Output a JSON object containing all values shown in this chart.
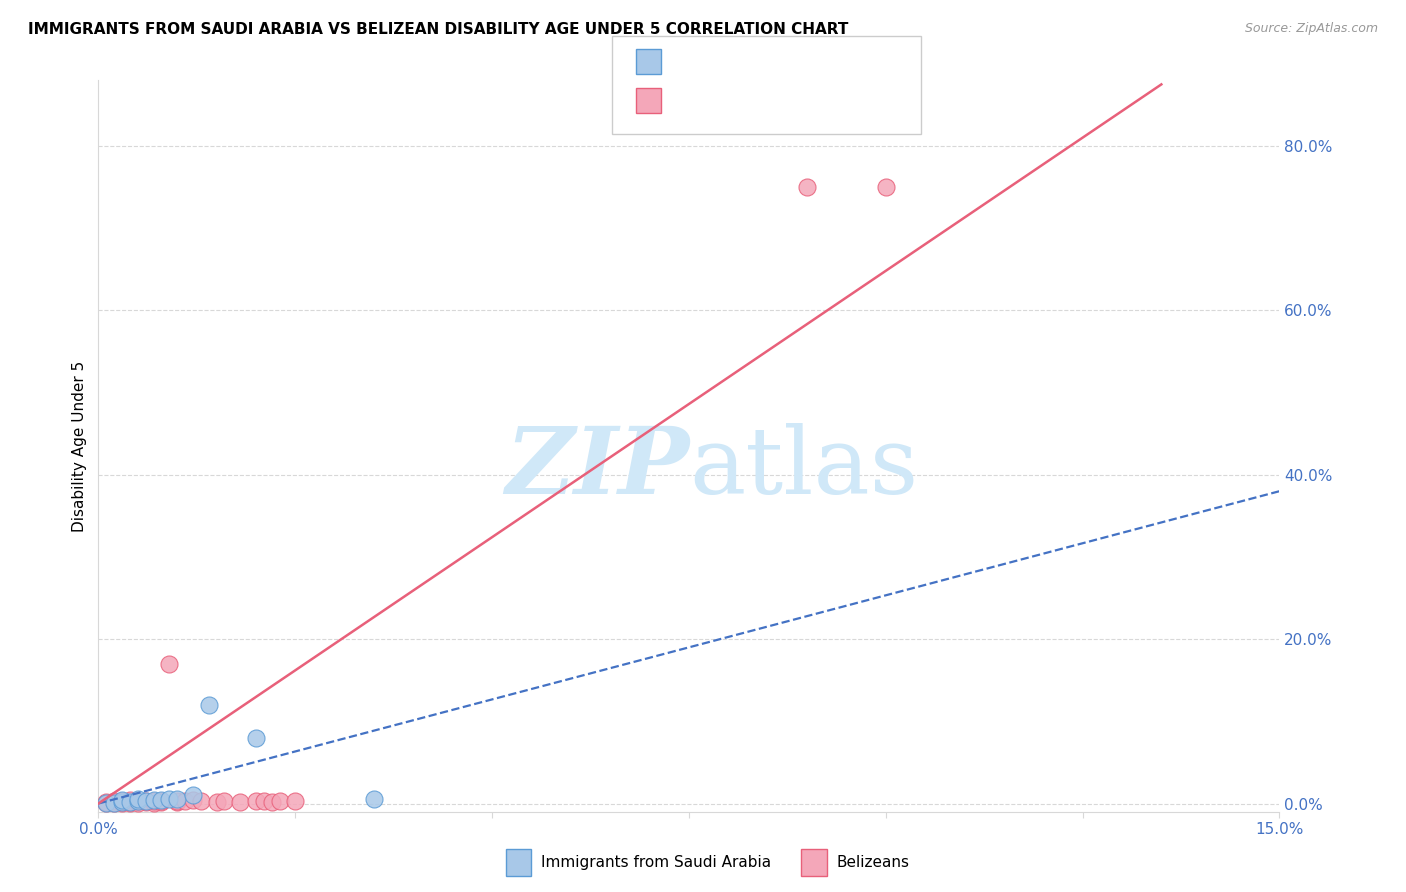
{
  "title": "IMMIGRANTS FROM SAUDI ARABIA VS BELIZEAN DISABILITY AGE UNDER 5 CORRELATION CHART",
  "source": "Source: ZipAtlas.com",
  "ylabel": "Disability Age Under 5",
  "legend_bottom_blue": "Immigrants from Saudi Arabia",
  "legend_bottom_pink": "Belizeans",
  "blue_scatter_color": "#a8c8e8",
  "blue_edge_color": "#5b9bd5",
  "pink_scatter_color": "#f4a7b9",
  "pink_edge_color": "#e8607a",
  "blue_line_color": "#4472c4",
  "pink_line_color": "#e8607a",
  "watermark_color": "#d0e8f8",
  "grid_color": "#d8d8d8",
  "blue_scatter_x": [
    0.001,
    0.002,
    0.003,
    0.003,
    0.004,
    0.005,
    0.005,
    0.006,
    0.007,
    0.008,
    0.009,
    0.01,
    0.012,
    0.014,
    0.02,
    0.035
  ],
  "blue_scatter_y": [
    0.001,
    0.001,
    0.002,
    0.004,
    0.002,
    0.003,
    0.005,
    0.003,
    0.004,
    0.004,
    0.005,
    0.006,
    0.01,
    0.12,
    0.08,
    0.005
  ],
  "pink_scatter_x": [
    0.001,
    0.001,
    0.002,
    0.002,
    0.003,
    0.003,
    0.003,
    0.004,
    0.004,
    0.004,
    0.005,
    0.005,
    0.006,
    0.006,
    0.007,
    0.007,
    0.008,
    0.008,
    0.009,
    0.01,
    0.01,
    0.011,
    0.012,
    0.013,
    0.015,
    0.016,
    0.018,
    0.02,
    0.021,
    0.022,
    0.023,
    0.025,
    0.09,
    0.1
  ],
  "pink_scatter_y": [
    0.001,
    0.002,
    0.001,
    0.003,
    0.001,
    0.002,
    0.003,
    0.001,
    0.002,
    0.004,
    0.001,
    0.003,
    0.002,
    0.003,
    0.001,
    0.003,
    0.002,
    0.003,
    0.17,
    0.002,
    0.003,
    0.003,
    0.004,
    0.003,
    0.002,
    0.003,
    0.002,
    0.003,
    0.003,
    0.002,
    0.003,
    0.003,
    0.75,
    0.75
  ],
  "blue_line_x": [
    0.0,
    0.15
  ],
  "blue_line_y": [
    0.0,
    0.38
  ],
  "pink_line_x": [
    0.0,
    0.135
  ],
  "pink_line_y": [
    0.0,
    0.875
  ],
  "xlim": [
    0.0,
    0.15
  ],
  "ylim": [
    -0.01,
    0.88
  ],
  "x_ticks": [
    0.0,
    0.025,
    0.05,
    0.075,
    0.1,
    0.125,
    0.15
  ],
  "y_ticks_right": [
    0.0,
    0.2,
    0.4,
    0.6,
    0.8
  ],
  "title_fontsize": 11,
  "tick_fontsize": 11,
  "ylabel_fontsize": 11
}
